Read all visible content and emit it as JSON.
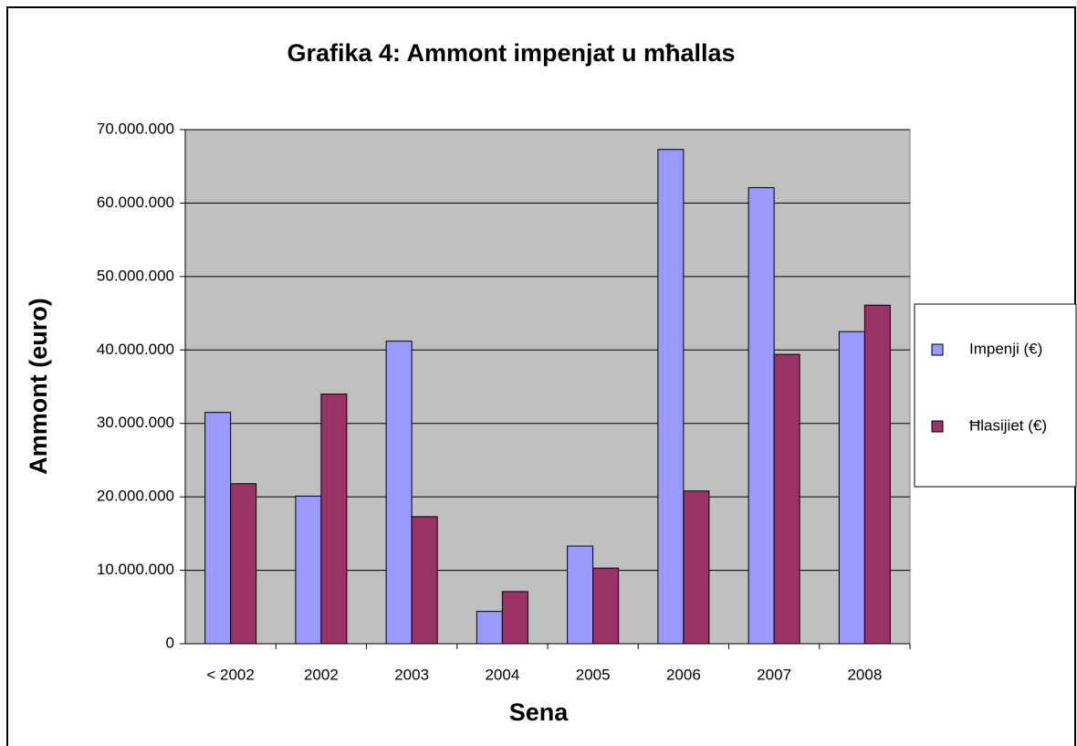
{
  "chart_data": {
    "type": "bar",
    "title": "Grafika 4: Ammont impenjat u mħallas",
    "x_label": "Sena",
    "y_label": "Ammont (euro)",
    "categories": [
      "< 2002",
      "2002",
      "2003",
      "2004",
      "2005",
      "2006",
      "2007",
      "2008"
    ],
    "series": [
      {
        "name": "Impenji (€)",
        "color": "#9999ff",
        "values": [
          31500000,
          20100000,
          41200000,
          4400000,
          13300000,
          67300000,
          62100000,
          42500000
        ]
      },
      {
        "name": "Ħlasijiet (€)",
        "color": "#993366",
        "values": [
          21800000,
          34000000,
          17300000,
          7100000,
          10300000,
          20800000,
          39400000,
          46100000
        ]
      }
    ],
    "ylim": [
      0,
      70000000
    ],
    "yticks": [
      0,
      {
        "value": 10000000,
        "label": "10.000.000"
      },
      {
        "value": 20000000,
        "label": "20.000.000"
      },
      {
        "value": 30000000,
        "label": "30.000.000"
      },
      {
        "value": 40000000,
        "label": "40.000.000"
      },
      {
        "value": 50000000,
        "label": "50.000.000"
      },
      {
        "value": 60000000,
        "label": "60.000.000"
      },
      {
        "value": 70000000,
        "label": "70.000.000"
      }
    ],
    "grid": true,
    "plot_background": "#c0c0c0",
    "legend": "right"
  }
}
